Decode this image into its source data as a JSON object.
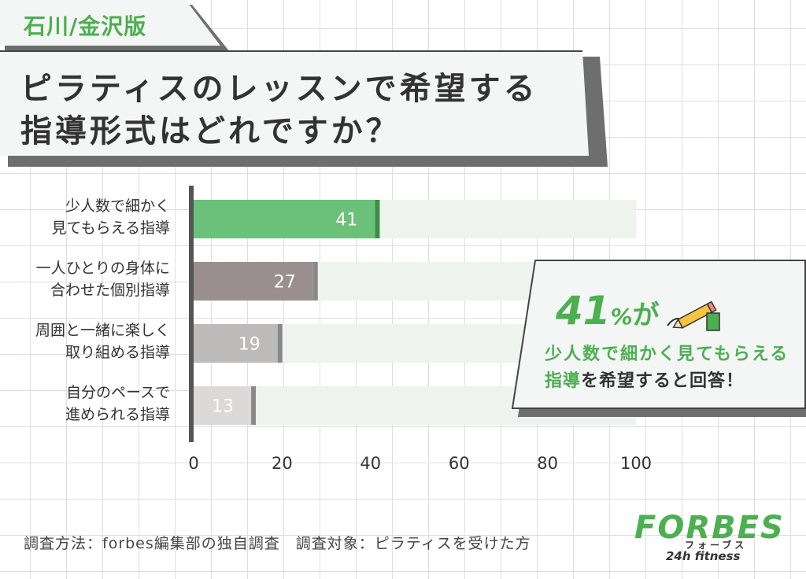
{
  "region_tag": "石川/金沢版",
  "title": {
    "line1": "ピラティスのレッスンで希望する",
    "line2": "指導形式はどれですか？"
  },
  "chart_data": {
    "type": "bar",
    "orientation": "horizontal",
    "categories": [
      [
        "少人数で細かく",
        "見てもらえる指導"
      ],
      [
        "一人ひとりの身体に",
        "合わせた個別指導"
      ],
      [
        "周囲と一緒に楽しく",
        "取り組める指導"
      ],
      [
        "自分のペースで",
        "進められる指導"
      ]
    ],
    "values": [
      41,
      27,
      19,
      13
    ],
    "xlim": [
      0,
      100
    ],
    "xticks": [
      "0",
      "20",
      "40",
      "60",
      "80",
      "100"
    ],
    "colors": [
      "#6cc17a",
      "#9a8f8f",
      "#bdbaba",
      "#dcd9d9"
    ],
    "track_color": "#eef3ee",
    "grid": false
  },
  "callout": {
    "number": "41",
    "percent": "%",
    "particle": "が",
    "line1": "少人数で細かく見てもらえる",
    "line2_highlight": "指導",
    "line2_rest": "を希望すると回答！"
  },
  "footer": {
    "method": "調査方法：forbes編集部の独自調査　調査対象：ピラティスを受けた方"
  },
  "logo": {
    "main": "FORBES",
    "kana": "フォーブス",
    "sub": "24h fitness"
  },
  "colors": {
    "accent": "#4caf50",
    "dark": "#333333"
  }
}
